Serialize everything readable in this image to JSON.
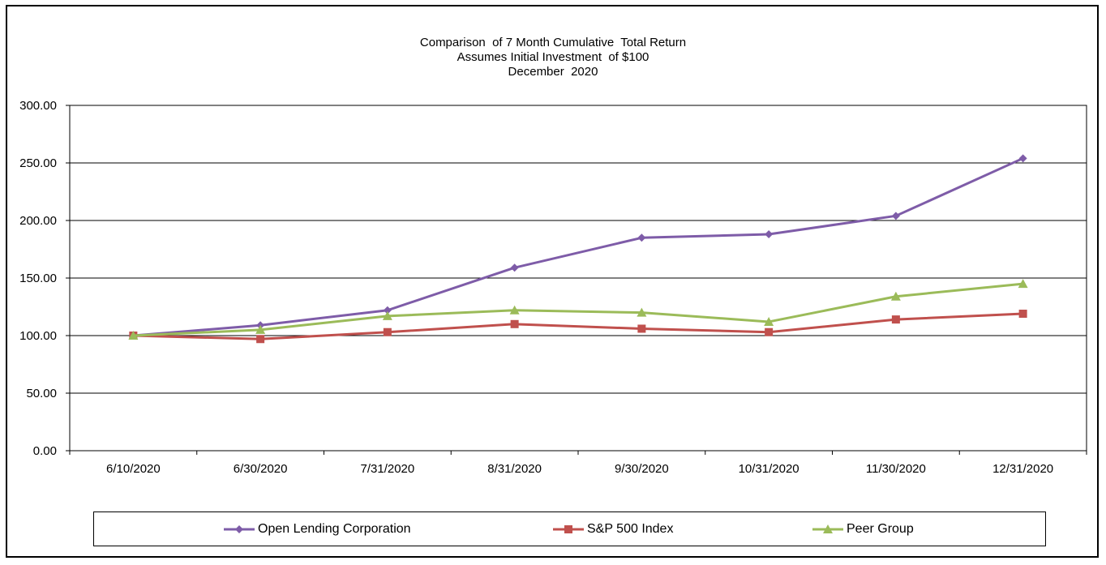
{
  "chart_data": {
    "type": "line",
    "title": [
      "Comparison  of 7 Month Cumulative  Total Return",
      "Assumes Initial Investment  of $100",
      "December  2020"
    ],
    "categories": [
      "6/10/2020",
      "6/30/2020",
      "7/31/2020",
      "8/31/2020",
      "9/30/2020",
      "10/31/2020",
      "11/30/2020",
      "12/31/2020"
    ],
    "ylim": [
      0,
      300
    ],
    "yticks": [
      0,
      50,
      100,
      150,
      200,
      250,
      300
    ],
    "ytick_labels": [
      "0.00",
      "50.00",
      "100.00",
      "150.00",
      "200.00",
      "250.00",
      "300.00"
    ],
    "grid": true,
    "legend_position": "bottom",
    "series": [
      {
        "name": "Open Lending Corporation",
        "color": "#7e5ca8",
        "marker": "diamond",
        "values": [
          100,
          109,
          122,
          159,
          185,
          188,
          204,
          254
        ]
      },
      {
        "name": "S&P 500 Index",
        "color": "#c0504d",
        "marker": "square",
        "values": [
          100,
          97,
          103,
          110,
          106,
          103,
          114,
          119
        ]
      },
      {
        "name": "Peer Group",
        "color": "#9bbb59",
        "marker": "triangle",
        "values": [
          100,
          105,
          117,
          122,
          120,
          112,
          134,
          145
        ]
      }
    ]
  }
}
